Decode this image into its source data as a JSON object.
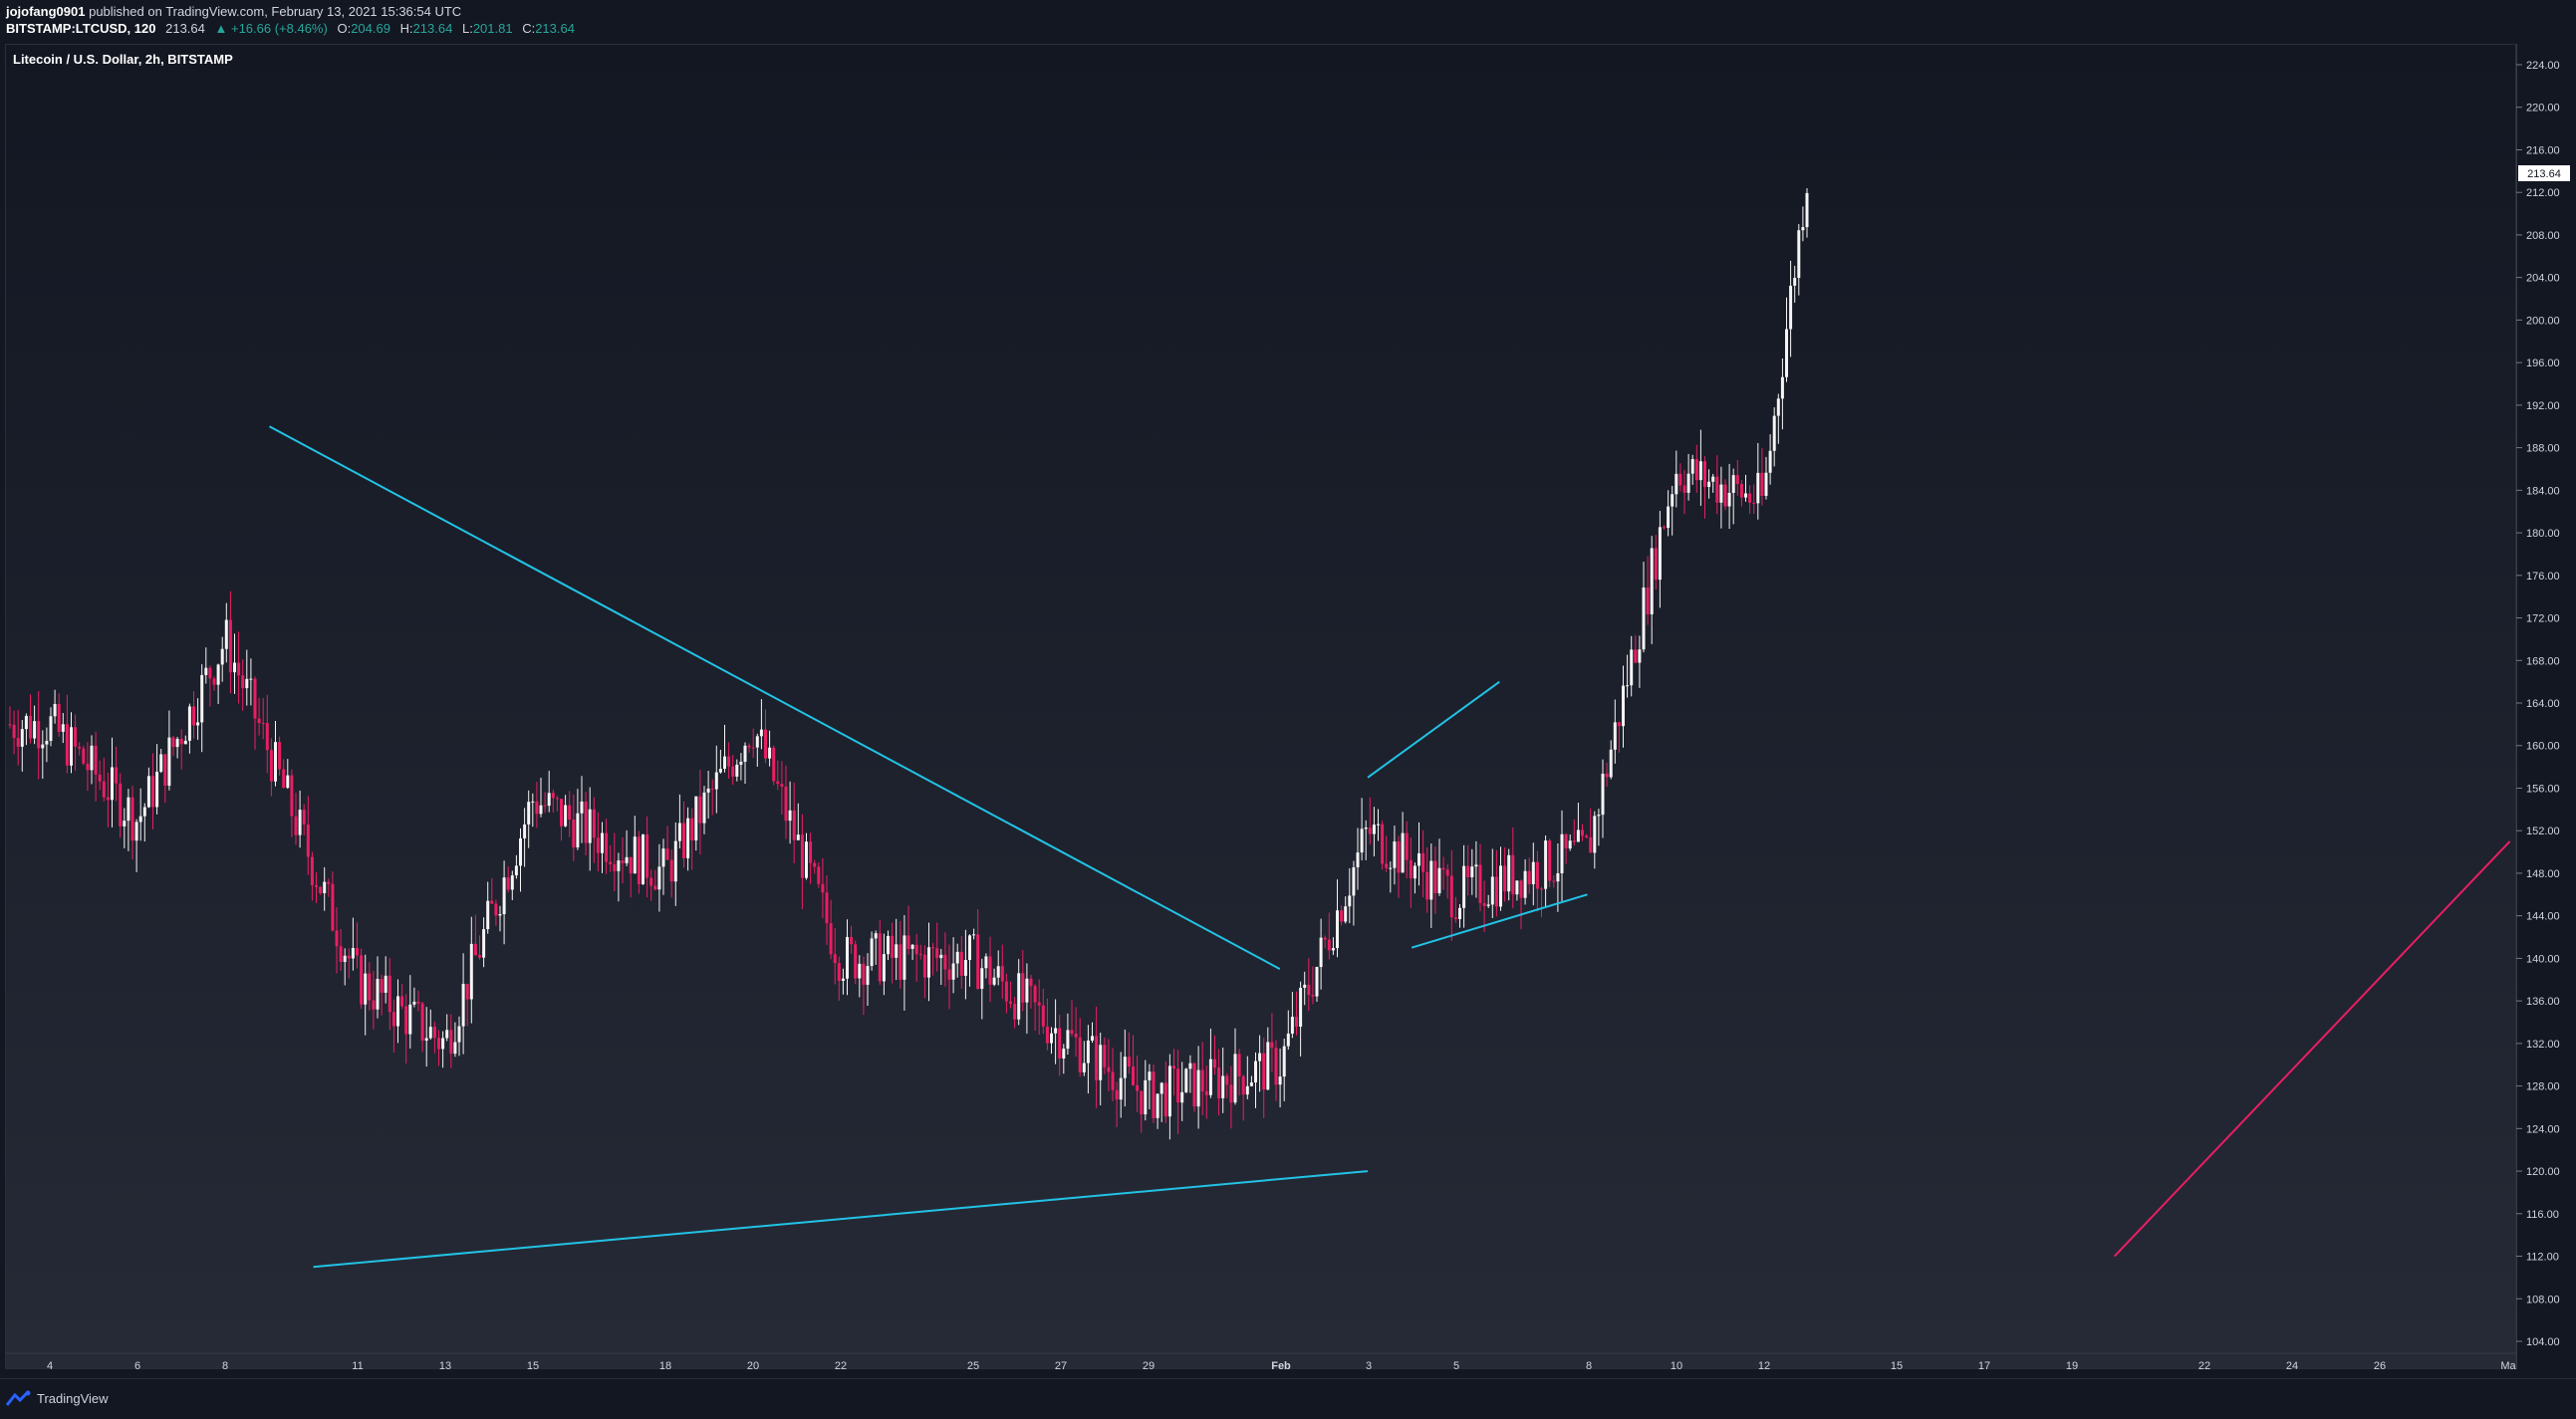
{
  "header": {
    "author": "jojofang0901",
    "published_text": "published on TradingView.com, February 13, 2021 15:36:54 UTC",
    "symbol": "BITSTAMP:LTCUSD, 120",
    "last_price": "213.64",
    "change": "▲ +16.66 (+8.46%)",
    "open_label": "O:",
    "open_value": "204.69",
    "high_label": "H:",
    "high_value": "213.64",
    "low_label": "L:",
    "low_value": "201.81",
    "close_label": "C:",
    "close_value": "213.64"
  },
  "chart": {
    "title": "Litecoin / U.S. Dollar, 2h, BITSTAMP",
    "price_labels": [
      "224.00",
      "220.00",
      "216.00",
      "212.00",
      "208.00",
      "204.00",
      "200.00",
      "196.00",
      "192.00",
      "188.00",
      "184.00",
      "180.00",
      "176.00",
      "172.00",
      "168.00",
      "164.00",
      "160.00",
      "156.00",
      "152.00",
      "148.00",
      "144.00",
      "140.00",
      "136.00",
      "132.00",
      "128.00",
      "124.00",
      "120.00",
      "116.00",
      "112.00",
      "108.00",
      "104.00"
    ],
    "current_price_tag": "213.64",
    "time_labels": [
      "4",
      "6",
      "8",
      "11",
      "13",
      "15",
      "18",
      "20",
      "22",
      "25",
      "27",
      "29",
      "Feb",
      "3",
      "5",
      "8",
      "10",
      "12",
      "15",
      "17",
      "19",
      "22",
      "24",
      "26",
      "Ma"
    ]
  },
  "footer": {
    "brand": "TradingView"
  },
  "colors": {
    "background": "#131722",
    "trendline": "#22c3e6",
    "pink": "#e91e63",
    "up": "#26a69a"
  },
  "chart_data": {
    "type": "candlestick",
    "title": "Litecoin / U.S. Dollar, 2h, BITSTAMP",
    "ylim": [
      102,
      226
    ],
    "x": [
      "Jan 4",
      "Jan 6",
      "Jan 8",
      "Jan 11",
      "Jan 13",
      "Jan 15",
      "Jan 18",
      "Jan 20",
      "Jan 22",
      "Jan 25",
      "Jan 27",
      "Jan 29",
      "Feb 1",
      "Feb 3",
      "Feb 5",
      "Feb 8",
      "Feb 10",
      "Feb 12",
      "Feb 13"
    ],
    "close_approx": [
      162,
      153,
      170,
      138,
      132,
      155,
      148,
      162,
      140,
      140,
      133,
      127,
      130,
      152,
      146,
      150,
      186,
      183,
      213.64
    ],
    "last": {
      "open": 204.69,
      "high": 213.64,
      "low": 201.81,
      "close": 213.64,
      "change": 16.66,
      "change_pct": 8.46
    },
    "drawings": [
      {
        "type": "trendline",
        "color": "#22c3e6",
        "points": [
          [
            "Jan 9",
            190
          ],
          [
            "Feb 1",
            139
          ]
        ]
      },
      {
        "type": "trendline",
        "color": "#22c3e6",
        "points": [
          [
            "Jan 10",
            111
          ],
          [
            "Feb 3",
            120
          ]
        ]
      },
      {
        "type": "trendline",
        "color": "#22c3e6",
        "points": [
          [
            "Feb 3",
            157
          ],
          [
            "Feb 6",
            166
          ]
        ]
      },
      {
        "type": "trendline",
        "color": "#22c3e6",
        "points": [
          [
            "Feb 4",
            141
          ],
          [
            "Feb 8",
            146
          ]
        ]
      },
      {
        "type": "trendline",
        "color": "#e91e63",
        "points": [
          [
            "Feb 20",
            112
          ],
          [
            "Mar 1",
            151
          ]
        ]
      }
    ]
  }
}
